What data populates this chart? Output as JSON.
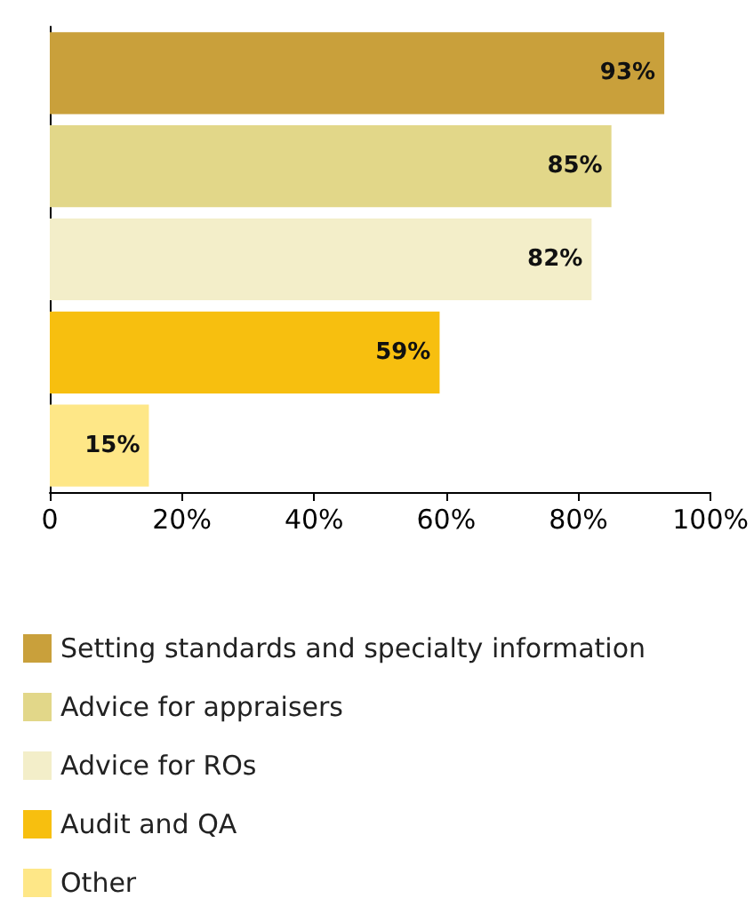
{
  "chart_data": {
    "type": "bar",
    "orientation": "horizontal",
    "categories": [
      null,
      null,
      null,
      null,
      null
    ],
    "series": [
      {
        "name": "Setting standards and specialty information",
        "color": "#c9a03b",
        "values": [
          93,
          null,
          null,
          null,
          null
        ],
        "value_labels": [
          "93%",
          null,
          null,
          null,
          null
        ]
      },
      {
        "name": "Advice for appraisers",
        "color": "#e2d789",
        "values": [
          null,
          85,
          null,
          null,
          null
        ],
        "value_labels": [
          null,
          "85%",
          null,
          null,
          null
        ]
      },
      {
        "name": "Advice for ROs",
        "color": "#f3eec9",
        "values": [
          null,
          null,
          82,
          null,
          null
        ],
        "value_labels": [
          null,
          null,
          "82%",
          null,
          null
        ]
      },
      {
        "name": "Audit and QA",
        "color": "#f7bf0f",
        "values": [
          null,
          null,
          null,
          59,
          null
        ],
        "value_labels": [
          null,
          null,
          null,
          "59%",
          null
        ]
      },
      {
        "name": "Other",
        "color": "#fee787",
        "values": [
          null,
          null,
          null,
          null,
          15
        ],
        "value_labels": [
          null,
          null,
          null,
          null,
          "15%"
        ]
      }
    ],
    "xlim": [
      0,
      100
    ],
    "xticks": [
      0,
      {
        "value": 20,
        "label": "20%"
      },
      {
        "value": 40,
        "label": "40%"
      },
      {
        "value": 60,
        "label": "60%"
      },
      {
        "value": 80,
        "label": "80%"
      },
      {
        "value": 100,
        "label": "100%"
      }
    ],
    "grid": false,
    "legend": "bottom"
  }
}
